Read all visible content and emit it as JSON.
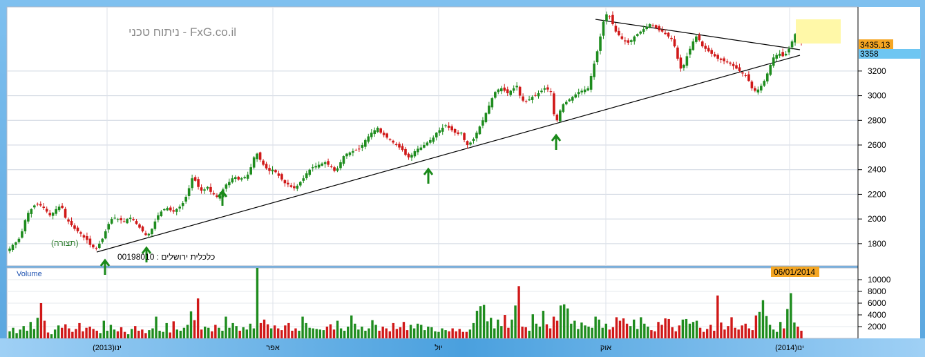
{
  "header": {
    "site": "FxG.co.il - ניתוח טכני",
    "symbol_line": "כלכלית ירושלים : 00198010",
    "preview_label": "(תצורה)"
  },
  "chart_data": [
    {
      "type": "candlestick",
      "title": "",
      "ylim": [
        1620,
        3720
      ],
      "y_ticks": [
        1800,
        2000,
        2200,
        2400,
        2600,
        2800,
        3000,
        3200
      ],
      "x_ticks": [
        "(2013)ינו",
        "אפר",
        "יול",
        "אוק",
        "(2014)ינו"
      ],
      "last_price": "3435.13",
      "line_value": "3358",
      "date_label": "06/01/2014",
      "close_series": [
        1760,
        1790,
        1810,
        1840,
        1900,
        1990,
        2050,
        2080,
        2110,
        2120,
        2110,
        2090,
        2060,
        2030,
        2050,
        2080,
        2100,
        2090,
        2010,
        1980,
        1950,
        1920,
        1900,
        1880,
        1850,
        1830,
        1790,
        1770,
        1760,
        1800,
        1840,
        1900,
        1960,
        2000,
        2010,
        2000,
        1990,
        1980,
        2000,
        2010,
        1990,
        1960,
        1930,
        1900,
        1870,
        1880,
        1920,
        1980,
        2030,
        2060,
        2080,
        2090,
        2070,
        2060,
        2080,
        2100,
        2130,
        2180,
        2250,
        2330,
        2310,
        2260,
        2230,
        2240,
        2260,
        2220,
        2200,
        2180,
        2190,
        2240,
        2280,
        2300,
        2330,
        2340,
        2320,
        2330,
        2340,
        2360,
        2420,
        2500,
        2530,
        2480,
        2440,
        2410,
        2390,
        2400,
        2380,
        2350,
        2320,
        2290,
        2280,
        2260,
        2250,
        2270,
        2300,
        2330,
        2370,
        2400,
        2420,
        2430,
        2440,
        2450,
        2460,
        2440,
        2420,
        2390,
        2410,
        2460,
        2510,
        2530,
        2540,
        2550,
        2560,
        2570,
        2600,
        2640,
        2670,
        2700,
        2720,
        2740,
        2700,
        2680,
        2660,
        2640,
        2620,
        2600,
        2580,
        2560,
        2520,
        2500,
        2520,
        2550,
        2570,
        2580,
        2600,
        2620,
        2640,
        2660,
        2700,
        2720,
        2740,
        2760,
        2740,
        2720,
        2700,
        2690,
        2700,
        2640,
        2600,
        2620,
        2650,
        2700,
        2750,
        2800,
        2860,
        2920,
        2980,
        3030,
        3050,
        3060,
        3040,
        3020,
        3040,
        3060,
        3080,
        3000,
        2960,
        2950,
        2970,
        2990,
        3000,
        3020,
        3040,
        3060,
        3050,
        3030,
        2850,
        2800,
        2880,
        2930,
        2950,
        2970,
        2990,
        3010,
        3030,
        3040,
        3050,
        3060,
        3160,
        3260,
        3360,
        3480,
        3600,
        3660,
        3640,
        3580,
        3520,
        3490,
        3460,
        3440,
        3430,
        3450,
        3480,
        3500,
        3520,
        3540,
        3560,
        3580,
        3570,
        3550,
        3530,
        3520,
        3500,
        3480,
        3460,
        3400,
        3300,
        3220,
        3250,
        3320,
        3380,
        3440,
        3480,
        3450,
        3400,
        3380,
        3360,
        3340,
        3320,
        3300,
        3290,
        3280,
        3270,
        3260,
        3240,
        3220,
        3200,
        3180,
        3160,
        3120,
        3060,
        3040,
        3050,
        3080,
        3120,
        3180,
        3250,
        3310,
        3330,
        3340,
        3320,
        3340,
        3380,
        3440,
        3500,
        3470,
        3435
      ]
    },
    {
      "type": "bar",
      "title": "Volume",
      "ylim": [
        0,
        12000
      ],
      "y_ticks": [
        "2000",
        "4000",
        "6000",
        "8000",
        "10000"
      ],
      "values": [
        1200,
        1800,
        900,
        1500,
        2100,
        1300,
        2800,
        1600,
        3500,
        6000,
        3000,
        1000,
        700,
        1500,
        2200,
        1800,
        2400,
        1700,
        1100,
        1600,
        2600,
        1200,
        1800,
        2000,
        1600,
        1300,
        900,
        3000,
        1300,
        2300,
        1500,
        1200,
        1900,
        1100,
        700,
        1600,
        2100,
        1300,
        1500,
        900,
        1400,
        1700,
        3700,
        1300,
        1100,
        2600,
        1000,
        2900,
        1500,
        1300,
        1800,
        2300,
        4600,
        3100,
        6800,
        1500,
        2000,
        1800,
        1200,
        2300,
        1800,
        1300,
        3700,
        1800,
        2600,
        2100,
        1300,
        1900,
        1500,
        2500,
        1700,
        12000,
        2600,
        3200,
        2400,
        1700,
        2200,
        1700,
        1400,
        2200,
        2600,
        1300,
        1700,
        1300,
        3700,
        2600,
        1800,
        1700,
        1600,
        1500,
        1400,
        2000,
        2400,
        1500,
        3000,
        1700,
        1300,
        2000,
        3900,
        2500,
        1500,
        2000,
        1300,
        1700,
        3100,
        2300,
        1300,
        2000,
        1700,
        1200,
        2600,
        1600,
        1900,
        2800,
        1400,
        2300,
        1700,
        2500,
        2300,
        1400,
        2000,
        1900,
        1200,
        1100,
        1700,
        1400,
        1200,
        1700,
        1200,
        1600,
        1100,
        1100,
        1500,
        2600,
        4700,
        5500,
        5700,
        2900,
        3500,
        1700,
        3200,
        2100,
        4000,
        1800,
        3200,
        5600,
        8900,
        2000,
        1900,
        1300,
        4100,
        2500,
        2000,
        4700,
        2400,
        1700,
        3700,
        3000,
        5600,
        5800,
        5100,
        2500,
        3000,
        1600,
        2700,
        2200,
        2000,
        1800,
        3700,
        3200,
        1800,
        2500,
        1500,
        1900,
        3600,
        3000,
        3400,
        2500,
        2100,
        3200,
        1600,
        3600,
        2500,
        2000,
        1400,
        1200,
        2800,
        2300,
        3400,
        3300,
        1900,
        1200,
        2200,
        3200,
        3300,
        2500,
        2800,
        3000,
        1800,
        1100,
        1600,
        2300,
        1300,
        7300,
        2700,
        1500,
        2100,
        3600,
        1800,
        1500,
        2200,
        2500,
        1700,
        1400,
        3900,
        4500,
        6500,
        3800,
        2300,
        1500,
        1100,
        2800,
        1700,
        5000,
        7700,
        2700,
        2000,
        1300
      ]
    }
  ]
}
